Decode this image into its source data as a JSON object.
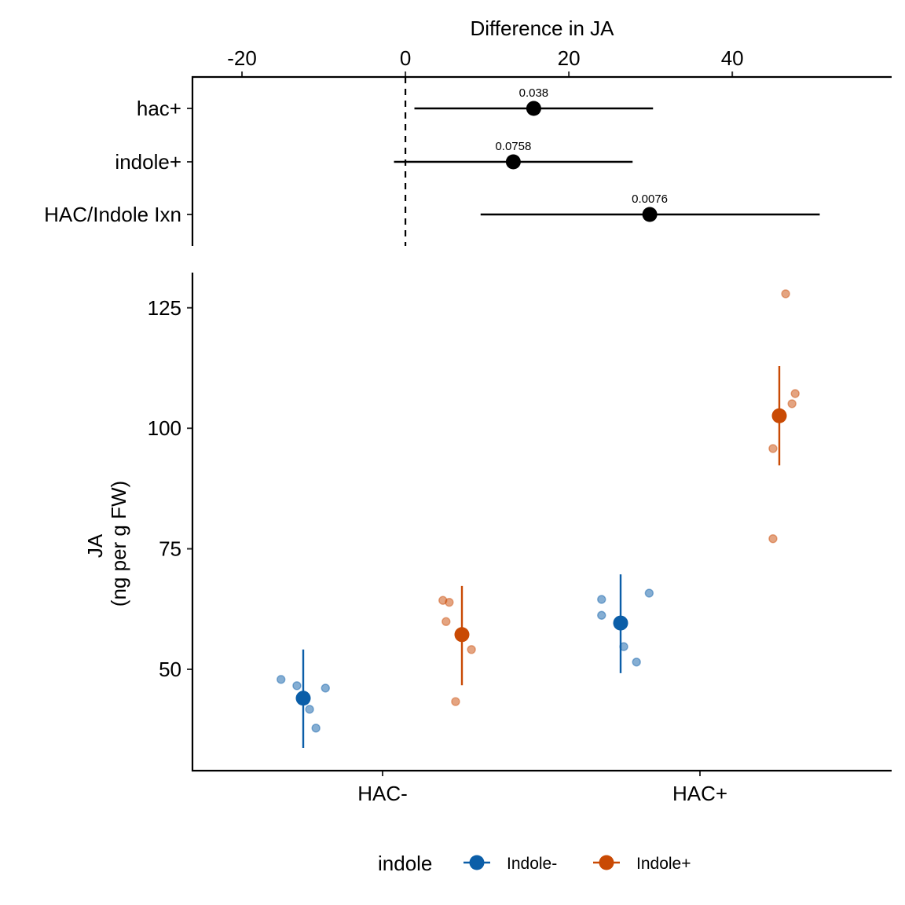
{
  "chart_data": [
    {
      "type": "scatter",
      "subtype": "forest",
      "title": "",
      "xlabel": "Difference in JA",
      "ylabel": "",
      "xlim": [
        -26.06,
        59.5
      ],
      "x_ticks": [
        -20,
        0,
        20,
        40
      ],
      "x_tick_labels": [
        "-20",
        "0",
        "20",
        "40"
      ],
      "x_axis_position": "top",
      "reference_line": {
        "x": 0,
        "style": "dashed"
      },
      "categories": [
        "hac+",
        "indole+",
        "HAC/Indole Ixn"
      ],
      "estimates": [
        15.7,
        13.2,
        29.9
      ],
      "ci_lower": [
        1.1,
        -1.4,
        9.2
      ],
      "ci_upper": [
        30.3,
        27.8,
        50.7
      ],
      "p_values": [
        "0.038",
        "0.0758",
        "0.0076"
      ],
      "grid": false,
      "point_color": "#000000"
    },
    {
      "type": "scatter",
      "subtype": "dodged-points-with-ci",
      "title": "",
      "xlabel": "",
      "ylabel": "JA\n(ng per g FW)",
      "ylabel_lines": [
        "JA",
        "(ng per g FW)"
      ],
      "ylim": [
        28.97,
        132.3
      ],
      "y_ticks": [
        50,
        75,
        100,
        125
      ],
      "y_tick_labels": [
        "50",
        "75",
        "100",
        "125"
      ],
      "categories": [
        "HAC-",
        "HAC+"
      ],
      "grid": false,
      "legend": {
        "title": "indole",
        "placement": "bottom",
        "entries": [
          {
            "label": "Indole-",
            "color": "#0b5ea8"
          },
          {
            "label": "Indole+",
            "color": "#c94a04"
          }
        ]
      },
      "series": [
        {
          "name": "Indole-",
          "color": "#0b5ea8",
          "means": [
            44.0,
            59.6
          ],
          "ci_lower": [
            33.7,
            49.2
          ],
          "ci_upper": [
            54.1,
            69.7
          ],
          "raw_points": [
            [
              {
                "jitter": -0.32,
                "y": 47.9
              },
              {
                "jitter": -0.27,
                "y": 46.6
              },
              {
                "jitter": -0.18,
                "y": 46.1
              },
              {
                "jitter": -0.23,
                "y": 41.7
              },
              {
                "jitter": -0.21,
                "y": 37.8
              }
            ],
            [
              {
                "jitter": -0.31,
                "y": 64.5
              },
              {
                "jitter": -0.16,
                "y": 65.8
              },
              {
                "jitter": -0.31,
                "y": 61.2
              },
              {
                "jitter": -0.24,
                "y": 54.7
              },
              {
                "jitter": -0.2,
                "y": 51.5
              }
            ]
          ]
        },
        {
          "name": "Indole+",
          "color": "#c94a04",
          "means": [
            57.2,
            102.6
          ],
          "ci_lower": [
            46.7,
            92.3
          ],
          "ci_upper": [
            67.3,
            112.9
          ],
          "raw_points": [
            [
              {
                "jitter": 0.19,
                "y": 64.3
              },
              {
                "jitter": 0.21,
                "y": 63.9
              },
              {
                "jitter": 0.2,
                "y": 59.9
              },
              {
                "jitter": 0.28,
                "y": 54.1
              },
              {
                "jitter": 0.23,
                "y": 43.3
              }
            ],
            [
              {
                "jitter": 0.27,
                "y": 127.9
              },
              {
                "jitter": 0.3,
                "y": 107.2
              },
              {
                "jitter": 0.29,
                "y": 105.1
              },
              {
                "jitter": 0.23,
                "y": 95.8
              },
              {
                "jitter": 0.23,
                "y": 77.1
              }
            ]
          ]
        }
      ]
    }
  ]
}
